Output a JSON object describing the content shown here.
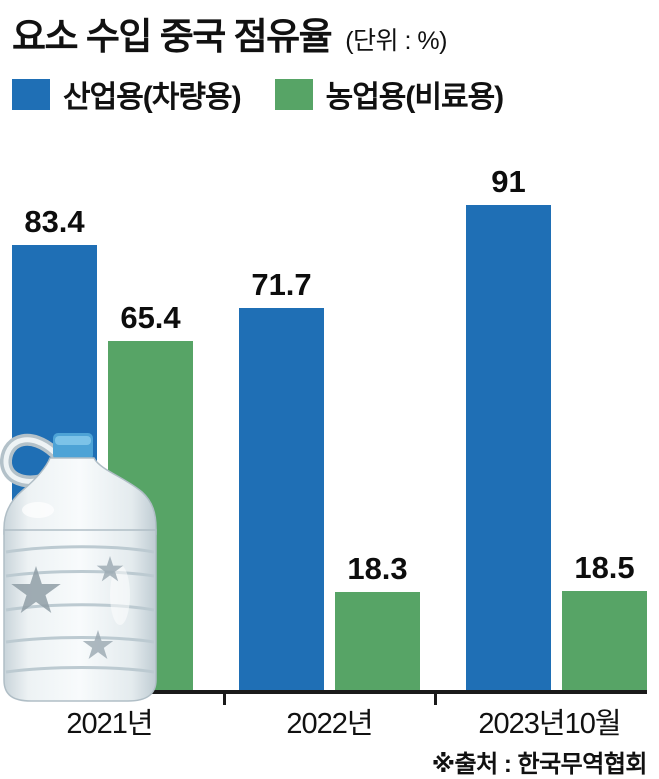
{
  "header": {
    "title": "요소 수입 중국 점유율",
    "unit": "(단위 : %)"
  },
  "chart_data": {
    "type": "bar",
    "title": "요소 수입 중국 점유율",
    "unit_label": "(단위 : %)",
    "categories": [
      "2021년",
      "2022년",
      "2023년10월"
    ],
    "series": [
      {
        "name": "산업용(차량용)",
        "color": "#1f6fb5",
        "values": [
          83.4,
          71.7,
          91
        ]
      },
      {
        "name": "농업용(비료용)",
        "color": "#57a466",
        "values": [
          65.4,
          18.3,
          18.5
        ]
      }
    ],
    "ylim": [
      0,
      100
    ],
    "grid": false,
    "legend_position": "top",
    "value_labels": true,
    "decorations": [
      "water-jug-photo-over-first-group"
    ]
  },
  "footer": {
    "source": "※출처 : 한국무역협회"
  }
}
